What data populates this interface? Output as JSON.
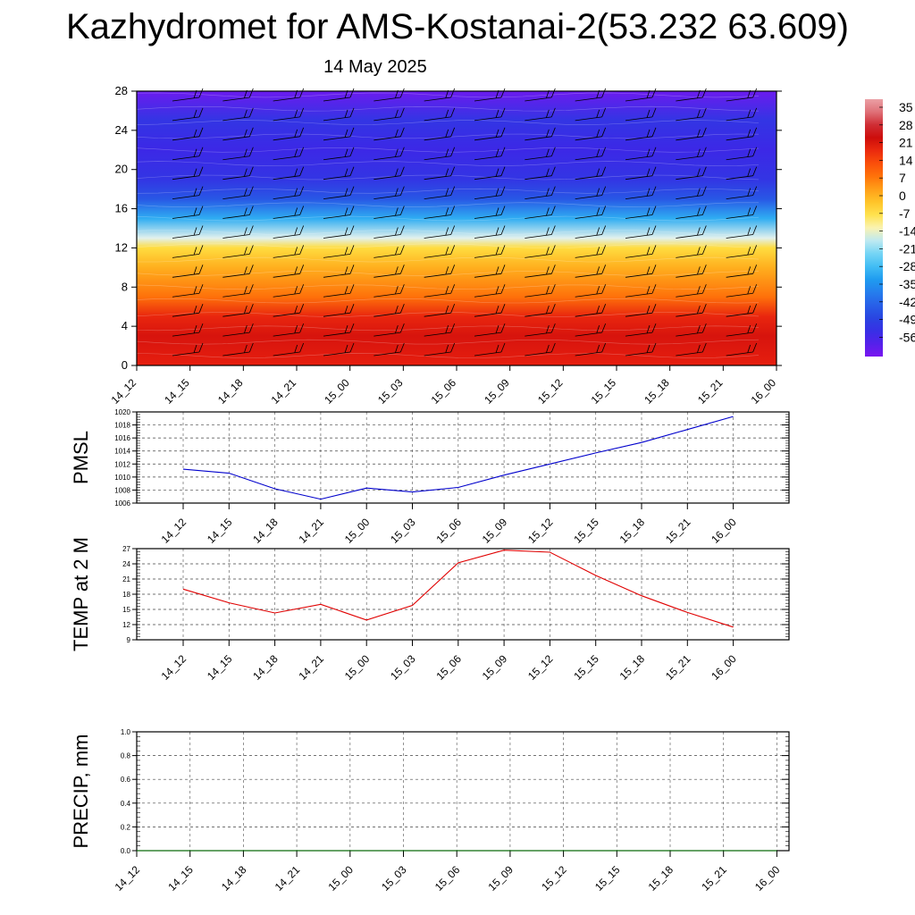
{
  "header": {
    "title": "Kazhydromet for AMS-Kostanai-2(53.232 63.609)",
    "date": "14 May 2025"
  },
  "time_labels": [
    "14_12",
    "14_15",
    "14_18",
    "14_21",
    "15_00",
    "15_03",
    "15_06",
    "15_09",
    "15_12",
    "15_15",
    "15_18",
    "15_21",
    "16_00"
  ],
  "colorbar": {
    "labels": [
      "35",
      "28",
      "21",
      "14",
      "7",
      "0",
      "-7",
      "-14",
      "-21",
      "-28",
      "-35",
      "-42",
      "-49",
      "-56"
    ]
  },
  "chart_data": [
    {
      "type": "heatmap",
      "name": "temperature-cross-section",
      "x": [
        "14_12",
        "14_15",
        "14_18",
        "14_21",
        "15_00",
        "15_03",
        "15_06",
        "15_09",
        "15_12",
        "15_15",
        "15_18",
        "15_21",
        "16_00"
      ],
      "ylim": [
        0,
        28
      ],
      "yticks": [
        0,
        4,
        8,
        12,
        16,
        20,
        24,
        28
      ],
      "levels": [
        {
          "height": 0,
          "value": 20
        },
        {
          "height": 3,
          "value": 22
        },
        {
          "height": 5,
          "value": 19
        },
        {
          "height": 7,
          "value": 9
        },
        {
          "height": 10,
          "value": 2
        },
        {
          "height": 12,
          "value": -5
        },
        {
          "height": 13,
          "value": -14
        },
        {
          "height": 15,
          "value": -28
        },
        {
          "height": 17,
          "value": -42
        },
        {
          "height": 19,
          "value": -49
        },
        {
          "height": 22,
          "value": -52
        },
        {
          "height": 25,
          "value": -49
        },
        {
          "height": 28,
          "value": -58
        }
      ],
      "overlay": "wind barbs"
    },
    {
      "type": "line",
      "ylabel": "PMSL",
      "categories": [
        "14_12",
        "14_15",
        "14_18",
        "14_21",
        "15_00",
        "15_03",
        "15_06",
        "15_09",
        "15_12",
        "15_15",
        "15_18",
        "15_21",
        "16_00"
      ],
      "values": [
        1011.2,
        1010.6,
        1008.2,
        1006.6,
        1008.3,
        1007.7,
        1008.4,
        1010.3,
        1012.0,
        1013.7,
        1015.3,
        1017.3,
        1019.3
      ],
      "ylim": [
        1006,
        1020
      ],
      "yticks": [
        1006,
        1008,
        1010,
        1012,
        1014,
        1016,
        1018,
        1020
      ],
      "color": "#0000cc",
      "grid": true
    },
    {
      "type": "line",
      "ylabel": "TEMP at 2 M",
      "categories": [
        "14_12",
        "14_15",
        "14_18",
        "14_21",
        "15_00",
        "15_03",
        "15_06",
        "15_09",
        "15_12",
        "15_15",
        "15_18",
        "15_21",
        "16_00"
      ],
      "values": [
        19.0,
        16.3,
        14.3,
        16.0,
        12.9,
        15.8,
        24.2,
        26.7,
        26.3,
        21.7,
        17.7,
        14.4,
        11.5
      ],
      "ylim": [
        9,
        27
      ],
      "yticks": [
        9,
        12,
        15,
        18,
        21,
        24,
        27
      ],
      "color": "#e00000",
      "grid": true
    },
    {
      "type": "line",
      "ylabel": "PRECIP, mm",
      "categories": [
        "14_12",
        "14_15",
        "14_18",
        "14_21",
        "15_00",
        "15_03",
        "15_06",
        "15_09",
        "15_12",
        "15_15",
        "15_18",
        "15_21",
        "16_00"
      ],
      "values": [
        0,
        0,
        0,
        0,
        0,
        0,
        0,
        0,
        0,
        0,
        0,
        0,
        0
      ],
      "ylim": [
        0,
        1
      ],
      "yticks": [
        0.0,
        0.2,
        0.4,
        0.6,
        0.8,
        1.0
      ],
      "color": "#007700",
      "grid": true
    }
  ]
}
